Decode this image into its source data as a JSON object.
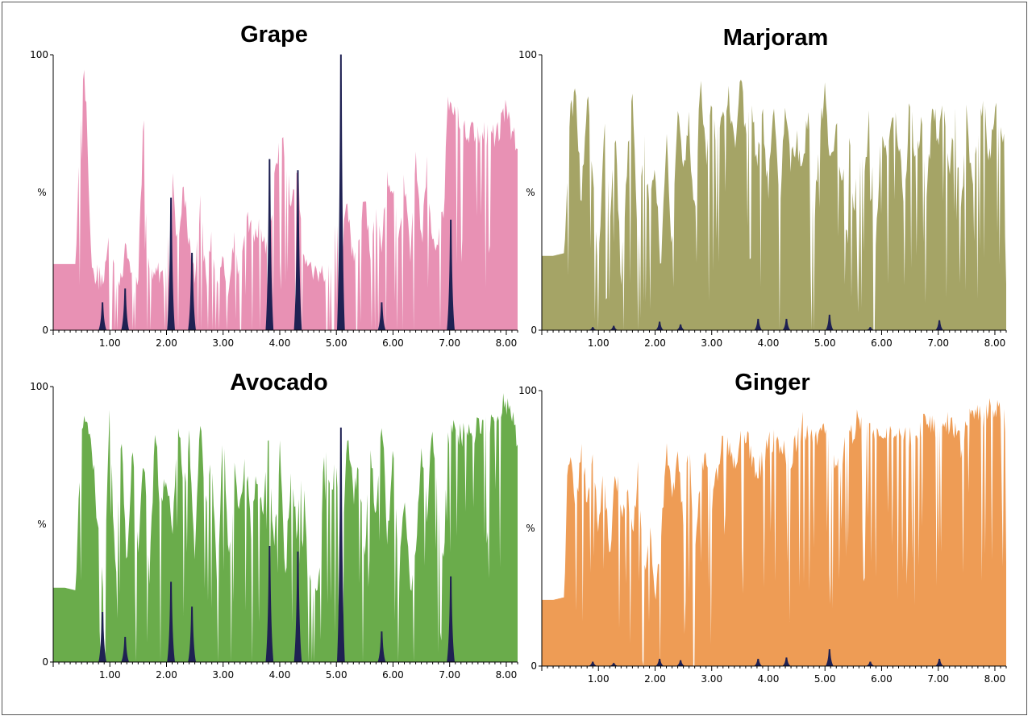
{
  "chart_data": [
    {
      "type": "area",
      "title": "Grape",
      "ylabel": "%",
      "xlim": [
        0,
        8.2
      ],
      "ylim": [
        0,
        100
      ],
      "x_ticks": [
        "1.00",
        "2.00",
        "3.00",
        "4.00",
        "5.00",
        "6.00",
        "7.00",
        "8.00"
      ],
      "y_ticks": [
        "0",
        "100"
      ],
      "color": "#e891b4",
      "peak_color": "#1f2153",
      "series": [
        {
          "x": [
            0,
            0.2,
            0.4,
            0.45,
            0.5,
            0.55,
            0.6,
            0.65,
            0.7,
            0.75,
            0.8,
            0.9,
            1.0,
            1.1,
            1.2,
            1.3,
            1.4,
            1.5,
            1.6,
            1.65,
            1.7,
            1.8,
            1.9,
            2.0,
            2.1,
            2.2,
            2.3,
            2.4,
            2.5,
            2.6,
            2.7,
            2.8,
            2.9,
            3.0,
            3.1,
            3.2,
            3.3,
            3.4,
            3.5,
            3.6,
            3.7,
            3.8,
            3.9,
            4.0,
            4.1,
            4.2,
            4.3,
            4.4,
            4.5,
            4.6,
            4.7,
            4.8,
            4.9,
            5.0,
            5.1,
            5.2,
            5.3,
            5.4,
            5.5,
            5.6,
            5.7,
            5.8,
            5.9,
            6.0,
            6.1,
            6.2,
            6.3,
            6.4,
            6.5,
            6.6,
            6.7,
            6.8,
            6.9,
            6.95,
            7.0,
            7.2,
            7.4,
            7.6,
            7.8,
            8.0,
            8.2
          ],
          "y": [
            24,
            24,
            24,
            60,
            88,
            92,
            75,
            40,
            18,
            20,
            19,
            20,
            35,
            21,
            20,
            30,
            18,
            21,
            78,
            30,
            20,
            22,
            19,
            21,
            62,
            26,
            55,
            30,
            20,
            48,
            15,
            38,
            12,
            28,
            15,
            34,
            18,
            40,
            35,
            38,
            32,
            30,
            55,
            70,
            64,
            45,
            60,
            32,
            25,
            20,
            22,
            20,
            24,
            38,
            30,
            45,
            24,
            35,
            48,
            28,
            40,
            30,
            55,
            52,
            30,
            55,
            26,
            65,
            30,
            62,
            28,
            35,
            45,
            80,
            85,
            75,
            72,
            72,
            70,
            80,
            65
          ]
        },
        {
          "peaks": [
            {
              "x": 0.87,
              "y": 10
            },
            {
              "x": 1.27,
              "y": 15
            },
            {
              "x": 2.08,
              "y": 48
            },
            {
              "x": 2.45,
              "y": 28
            },
            {
              "x": 3.82,
              "y": 62
            },
            {
              "x": 4.32,
              "y": 58
            },
            {
              "x": 5.08,
              "y": 100
            },
            {
              "x": 5.8,
              "y": 10
            },
            {
              "x": 7.02,
              "y": 40
            }
          ]
        }
      ]
    },
    {
      "type": "area",
      "title": "Marjoram",
      "ylabel": "%",
      "xlim": [
        0,
        8.2
      ],
      "ylim": [
        0,
        100
      ],
      "x_ticks": [
        "1.00",
        "2.00",
        "3.00",
        "4.00",
        "5.00",
        "6.00",
        "7.00",
        "8.00"
      ],
      "y_ticks": [
        "0",
        "100"
      ],
      "color": "#a5a466",
      "peak_color": "#1f2153",
      "series": [
        {
          "x": [
            0,
            0.2,
            0.4,
            0.5,
            0.6,
            0.7,
            0.8,
            0.9,
            1.0,
            1.1,
            1.2,
            1.3,
            1.4,
            1.5,
            1.6,
            1.7,
            1.8,
            1.9,
            2.0,
            2.1,
            2.2,
            2.3,
            2.4,
            2.5,
            2.6,
            2.7,
            2.8,
            2.9,
            3.0,
            3.1,
            3.2,
            3.3,
            3.4,
            3.5,
            3.6,
            3.7,
            3.8,
            3.9,
            4.0,
            4.1,
            4.2,
            4.3,
            4.4,
            4.5,
            4.6,
            4.7,
            4.8,
            4.9,
            5.0,
            5.1,
            5.2,
            5.3,
            5.4,
            5.5,
            5.6,
            5.7,
            5.8,
            5.9,
            6.0,
            6.1,
            6.2,
            6.3,
            6.4,
            6.5,
            6.6,
            6.7,
            6.8,
            6.9,
            7.0,
            7.1,
            7.2,
            7.3,
            7.4,
            7.5,
            7.6,
            7.7,
            7.8,
            7.9,
            8.0,
            8.1,
            8.2
          ],
          "y": [
            27,
            27,
            28,
            80,
            85,
            45,
            88,
            60,
            20,
            75,
            40,
            72,
            18,
            60,
            85,
            30,
            70,
            45,
            60,
            25,
            70,
            30,
            85,
            55,
            75,
            40,
            90,
            60,
            80,
            70,
            75,
            88,
            65,
            95,
            70,
            82,
            60,
            78,
            50,
            82,
            40,
            85,
            60,
            70,
            55,
            80,
            35,
            72,
            88,
            60,
            75,
            50,
            82,
            40,
            70,
            55,
            85,
            30,
            75,
            60,
            80,
            70,
            45,
            85,
            60,
            78,
            50,
            82,
            70,
            85,
            55,
            78,
            40,
            80,
            50,
            72,
            85,
            60,
            80,
            75,
            63
          ]
        },
        {
          "peaks": [
            {
              "x": 0.9,
              "y": 1
            },
            {
              "x": 1.27,
              "y": 1.5
            },
            {
              "x": 2.08,
              "y": 3
            },
            {
              "x": 2.45,
              "y": 2
            },
            {
              "x": 3.82,
              "y": 4
            },
            {
              "x": 4.32,
              "y": 4
            },
            {
              "x": 5.08,
              "y": 5.5
            },
            {
              "x": 5.8,
              "y": 1
            },
            {
              "x": 7.02,
              "y": 3.5
            }
          ]
        }
      ]
    },
    {
      "type": "area",
      "title": "Avocado",
      "ylabel": "%",
      "xlim": [
        0,
        8.2
      ],
      "ylim": [
        0,
        100
      ],
      "x_ticks": [
        "1.00",
        "2.00",
        "3.00",
        "4.00",
        "5.00",
        "6.00",
        "7.00",
        "8.00"
      ],
      "y_ticks": [
        "0",
        "100"
      ],
      "color": "#6aac4b",
      "peak_color": "#1f2153",
      "series": [
        {
          "x": [
            0,
            0.2,
            0.4,
            0.45,
            0.5,
            0.6,
            0.7,
            0.8,
            0.9,
            1.0,
            1.1,
            1.2,
            1.3,
            1.4,
            1.5,
            1.6,
            1.7,
            1.8,
            1.9,
            2.0,
            2.1,
            2.2,
            2.3,
            2.4,
            2.5,
            2.6,
            2.7,
            2.8,
            2.9,
            3.0,
            3.1,
            3.2,
            3.3,
            3.4,
            3.5,
            3.6,
            3.7,
            3.8,
            3.9,
            4.0,
            4.1,
            4.2,
            4.3,
            4.4,
            4.5,
            4.6,
            4.7,
            4.8,
            4.9,
            5.0,
            5.1,
            5.2,
            5.3,
            5.4,
            5.5,
            5.6,
            5.7,
            5.8,
            5.9,
            6.0,
            6.1,
            6.2,
            6.3,
            6.4,
            6.5,
            6.6,
            6.7,
            6.8,
            6.9,
            6.95,
            7.0,
            7.2,
            7.4,
            7.6,
            7.8,
            8.0,
            8.2
          ],
          "y": [
            27,
            27,
            26,
            60,
            85,
            88,
            75,
            45,
            25,
            90,
            30,
            85,
            35,
            80,
            40,
            75,
            30,
            85,
            55,
            70,
            45,
            90,
            60,
            80,
            35,
            88,
            55,
            72,
            30,
            85,
            40,
            70,
            55,
            75,
            45,
            70,
            50,
            85,
            40,
            78,
            30,
            72,
            45,
            80,
            28,
            26,
            28,
            88,
            55,
            75,
            35,
            85,
            60,
            70,
            40,
            82,
            50,
            90,
            45,
            75,
            30,
            60,
            28,
            35,
            80,
            55,
            85,
            60,
            35,
            80,
            85,
            82,
            84,
            85,
            88,
            95,
            80
          ]
        },
        {
          "peaks": [
            {
              "x": 0.87,
              "y": 18
            },
            {
              "x": 1.27,
              "y": 9
            },
            {
              "x": 2.08,
              "y": 29
            },
            {
              "x": 2.45,
              "y": 20
            },
            {
              "x": 3.82,
              "y": 42
            },
            {
              "x": 4.32,
              "y": 40
            },
            {
              "x": 5.08,
              "y": 85
            },
            {
              "x": 5.8,
              "y": 11
            },
            {
              "x": 7.02,
              "y": 31
            }
          ]
        }
      ]
    },
    {
      "type": "area",
      "title": "Ginger",
      "ylabel": "%",
      "xlim": [
        0,
        8.2
      ],
      "ylim": [
        0,
        100
      ],
      "x_ticks": [
        "1.00",
        "2.00",
        "3.00",
        "4.00",
        "5.00",
        "6.00",
        "7.00",
        "8.00"
      ],
      "y_ticks": [
        "0",
        "100"
      ],
      "color": "#ee9c55",
      "peak_color": "#1f2153",
      "series": [
        {
          "x": [
            0,
            0.2,
            0.4,
            0.45,
            0.5,
            0.6,
            0.7,
            0.8,
            0.9,
            1.0,
            1.1,
            1.2,
            1.3,
            1.4,
            1.5,
            1.6,
            1.7,
            1.8,
            1.9,
            2.0,
            2.1,
            2.2,
            2.3,
            2.4,
            2.5,
            2.6,
            2.7,
            2.8,
            2.9,
            3.0,
            3.2,
            3.4,
            3.6,
            3.8,
            4.0,
            4.2,
            4.4,
            4.6,
            4.8,
            5.0,
            5.2,
            5.4,
            5.6,
            5.8,
            6.0,
            6.2,
            6.4,
            6.6,
            6.8,
            7.0,
            7.2,
            7.4,
            7.6,
            7.8,
            8.0,
            8.2
          ],
          "y": [
            24,
            24,
            25,
            70,
            78,
            55,
            80,
            60,
            75,
            50,
            70,
            40,
            72,
            55,
            65,
            45,
            70,
            30,
            55,
            25,
            45,
            80,
            60,
            75,
            55,
            80,
            45,
            70,
            75,
            60,
            82,
            75,
            85,
            70,
            80,
            82,
            75,
            88,
            80,
            85,
            70,
            82,
            90,
            85,
            88,
            82,
            85,
            80,
            90,
            85,
            88,
            80,
            92,
            90,
            95,
            88
          ]
        },
        {
          "peaks": [
            {
              "x": 0.9,
              "y": 1.5
            },
            {
              "x": 1.27,
              "y": 1
            },
            {
              "x": 2.08,
              "y": 2.5
            },
            {
              "x": 2.45,
              "y": 2
            },
            {
              "x": 3.82,
              "y": 2.5
            },
            {
              "x": 4.32,
              "y": 3
            },
            {
              "x": 5.08,
              "y": 6
            },
            {
              "x": 5.8,
              "y": 1.5
            },
            {
              "x": 7.02,
              "y": 2.5
            }
          ]
        }
      ]
    }
  ]
}
